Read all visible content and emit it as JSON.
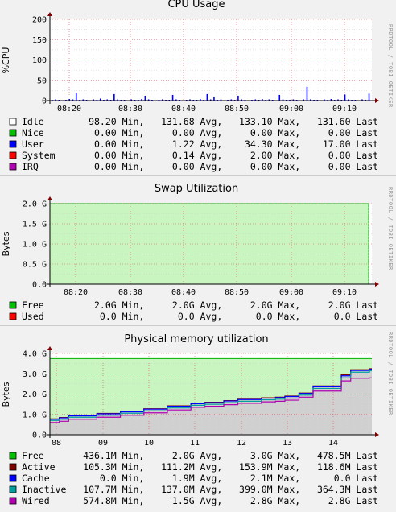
{
  "watermark": "RRDTOOL / TOBI OETIKER",
  "charts": [
    {
      "type": "bar",
      "title": "CPU Usage",
      "ylabel": "%CPU",
      "ylim": [
        0,
        200
      ],
      "y_ticks": [
        "0",
        "50",
        "100",
        "150",
        "200"
      ],
      "x_ticks": [
        "08:20",
        "08:30",
        "08:40",
        "08:50",
        "09:00",
        "09:10"
      ],
      "colors": {
        "background": "#ffffff",
        "grid": "#e05050"
      },
      "series": [
        {
          "name": "Idle",
          "color": "#ffffff",
          "min": "98.20",
          "avg": "131.68",
          "max": "133.10",
          "last": "131.60"
        },
        {
          "name": "Nice",
          "color": "#00c000",
          "min": "0.00",
          "avg": "0.00",
          "max": "0.00",
          "last": "0.00"
        },
        {
          "name": "User",
          "color": "#0000ff",
          "min": "0.00",
          "avg": "1.22",
          "max": "34.30",
          "last": "17.00",
          "values": [
            2,
            3,
            2,
            1,
            2,
            4,
            3,
            18,
            2,
            3,
            2,
            1,
            3,
            2,
            5,
            2,
            3,
            2,
            16,
            3,
            2,
            2,
            1,
            3,
            2,
            2,
            4,
            12,
            3,
            2,
            1,
            2,
            3,
            2,
            2,
            14,
            3,
            2,
            1,
            2,
            3,
            2,
            2,
            4,
            2,
            16,
            3,
            10,
            2,
            3,
            1,
            2,
            3,
            2,
            12,
            3,
            2,
            1,
            2,
            3,
            2,
            4,
            2,
            3,
            2,
            1,
            14,
            3,
            2,
            2,
            3,
            2,
            1,
            3,
            34,
            3,
            2,
            2,
            1,
            3,
            2,
            4,
            2,
            3,
            2,
            15,
            3,
            2,
            2,
            1,
            3,
            2,
            17
          ]
        },
        {
          "name": "System",
          "color": "#ff0000",
          "min": "0.00",
          "avg": "0.14",
          "max": "2.00",
          "last": "0.00"
        },
        {
          "name": "IRQ",
          "color": "#b000b0",
          "min": "0.00",
          "avg": "0.00",
          "max": "0.00",
          "last": "0.00"
        }
      ]
    },
    {
      "type": "area",
      "title": "Swap Utilization",
      "ylabel": "Bytes",
      "ylim": [
        0,
        2.0
      ],
      "y_ticks": [
        "0.0",
        "0.5 G",
        "1.0 G",
        "1.5 G",
        "2.0 G"
      ],
      "x_ticks": [
        "08:20",
        "08:30",
        "08:40",
        "08:50",
        "09:00",
        "09:10"
      ],
      "colors": {
        "background": "#c8f5c0",
        "grid": "#e05050"
      },
      "series": [
        {
          "name": "Free",
          "color": "#00c000",
          "min": "2.0G",
          "avg": "2.0G",
          "max": "2.0G",
          "last": "2.0G"
        },
        {
          "name": "Used",
          "color": "#ff0000",
          "min": "0.0",
          "avg": "0.0",
          "max": "0.0",
          "last": "0.0"
        }
      ]
    },
    {
      "type": "area",
      "title": "Physical memory utilization",
      "ylabel": "Bytes",
      "ylim": [
        0,
        4.0
      ],
      "y_ticks": [
        "0.0",
        "1.0 G",
        "2.0 G",
        "3.0 G",
        "4.0 G"
      ],
      "x_ticks": [
        "08",
        "09",
        "10",
        "11",
        "12",
        "13",
        "14"
      ],
      "colors": {
        "background": "#c8f5c0",
        "grid": "#e05050",
        "fill": "#d0d0d0"
      },
      "total": 3.75,
      "x": [
        8.0,
        8.2,
        8.4,
        9.0,
        9.5,
        10.0,
        10.5,
        11.0,
        11.3,
        11.7,
        12.0,
        12.5,
        12.8,
        13.0,
        13.3,
        13.5,
        13.6,
        13.9,
        14.0,
        14.2,
        14.4,
        14.8
      ],
      "series": [
        {
          "name": "Free",
          "color": "#00c000",
          "min": "436.1M",
          "avg": "2.0G",
          "max": "3.0G",
          "last": "478.5M"
        },
        {
          "name": "Active",
          "color": "#800000",
          "min": "105.3M",
          "avg": "111.2M",
          "max": "153.9M",
          "last": "118.6M",
          "values": [
            0.78,
            0.85,
            0.95,
            1.05,
            1.15,
            1.28,
            1.42,
            1.55,
            1.6,
            1.68,
            1.75,
            1.82,
            1.85,
            1.9,
            2.05,
            2.05,
            2.4,
            2.4,
            2.4,
            2.95,
            3.2,
            3.25
          ]
        },
        {
          "name": "Cache",
          "color": "#0000ff",
          "min": "0.0",
          "avg": "1.9M",
          "max": "2.1M",
          "last": "0.0",
          "values": [
            0.76,
            0.83,
            0.93,
            1.03,
            1.13,
            1.26,
            1.4,
            1.53,
            1.58,
            1.66,
            1.73,
            1.8,
            1.83,
            1.88,
            2.03,
            2.03,
            2.36,
            2.36,
            2.36,
            2.9,
            3.16,
            3.22
          ]
        },
        {
          "name": "Inactive",
          "color": "#00a0a0",
          "min": "107.7M",
          "avg": "137.0M",
          "max": "399.0M",
          "last": "364.3M",
          "values": [
            0.7,
            0.76,
            0.86,
            0.96,
            1.06,
            1.18,
            1.32,
            1.45,
            1.5,
            1.58,
            1.65,
            1.72,
            1.75,
            1.8,
            1.95,
            1.95,
            2.28,
            2.28,
            2.28,
            2.8,
            3.08,
            3.15
          ]
        },
        {
          "name": "Wired",
          "color": "#b000b0",
          "min": "574.8M",
          "avg": "1.5G",
          "max": "2.8G",
          "last": "2.8G",
          "values": [
            0.6,
            0.66,
            0.76,
            0.86,
            0.96,
            1.08,
            1.22,
            1.35,
            1.4,
            1.48,
            1.55,
            1.62,
            1.65,
            1.7,
            1.85,
            1.85,
            2.15,
            2.15,
            2.15,
            2.65,
            2.78,
            2.8
          ]
        }
      ]
    }
  ]
}
